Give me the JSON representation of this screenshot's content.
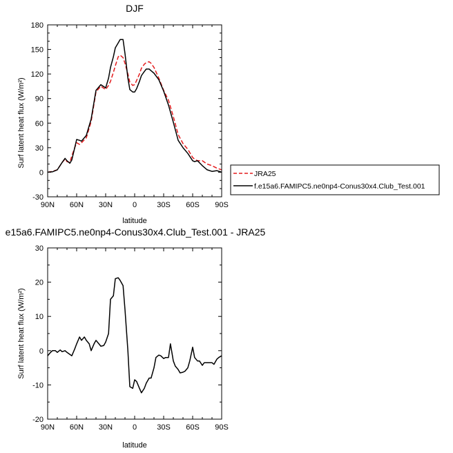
{
  "colors": {
    "jra": "#e41a1c",
    "model": "#000000",
    "frame": "#000000"
  },
  "chart_data": [
    {
      "type": "line",
      "title": "DJF",
      "xlabel": "latitude",
      "ylabel": "Surf latent heat flux (W/m²)",
      "xlim": [
        90,
        -90
      ],
      "ylim": [
        -30,
        180
      ],
      "xtick_values": [
        90,
        60,
        30,
        0,
        -30,
        -60,
        -90
      ],
      "xtick_labels": [
        "90N",
        "60N",
        "30N",
        "0",
        "30S",
        "60S",
        "90S"
      ],
      "ytick_values": [
        -30,
        0,
        30,
        60,
        90,
        120,
        150,
        180
      ],
      "ytick_labels": [
        "-30",
        "0",
        "30",
        "60",
        "90",
        "120",
        "150",
        "180"
      ],
      "legend_position": "right",
      "series": [
        {
          "name": "JRA25",
          "style": "dashed",
          "color": "#e41a1c",
          "x": [
            90,
            85,
            80,
            75,
            72,
            70,
            67,
            65,
            62,
            60,
            57,
            55,
            50,
            45,
            40,
            35,
            30,
            27,
            25,
            22,
            20,
            17,
            15,
            12,
            10,
            7,
            5,
            2,
            0,
            -2,
            -5,
            -7,
            -10,
            -12,
            -15,
            -17,
            -20,
            -25,
            -30,
            -35,
            -40,
            -45,
            -50,
            -55,
            -60,
            -62,
            -65,
            -70,
            -75,
            -80,
            -85,
            -90
          ],
          "y": [
            0,
            1,
            3,
            12,
            16,
            13,
            12,
            20,
            30,
            36,
            34,
            36,
            42,
            62,
            98,
            105,
            101,
            106,
            111,
            122,
            130,
            141,
            143,
            140,
            133,
            120,
            110,
            106,
            107,
            112,
            120,
            127,
            132,
            134,
            135,
            133,
            128,
            115,
            100,
            88,
            68,
            46,
            35,
            28,
            18,
            16,
            14,
            14,
            10,
            8,
            5,
            3
          ]
        },
        {
          "name": "f.e15a6.FAMIPC5.ne0np4-Conus30x4.Club_Test.001",
          "style": "solid",
          "color": "#000000",
          "x": [
            90,
            85,
            80,
            75,
            72,
            70,
            67,
            65,
            62,
            60,
            57,
            55,
            50,
            45,
            40,
            35,
            30,
            27,
            25,
            22,
            20,
            17,
            15,
            12,
            10,
            7,
            5,
            2,
            0,
            -2,
            -5,
            -7,
            -10,
            -12,
            -15,
            -17,
            -20,
            -25,
            -30,
            -35,
            -40,
            -45,
            -50,
            -55,
            -60,
            -62,
            -65,
            -70,
            -75,
            -80,
            -85,
            -90
          ],
          "y": [
            0,
            0.5,
            3,
            12,
            17,
            14,
            11,
            15,
            30,
            40,
            39,
            38,
            45,
            65,
            100,
            107,
            103,
            115,
            128,
            141,
            152,
            158,
            162,
            162,
            145,
            115,
            101,
            98,
            98,
            102,
            111,
            118,
            123,
            126,
            126,
            124,
            121,
            113,
            99,
            82,
            61,
            39,
            30,
            23,
            14,
            13,
            14,
            8,
            3,
            1,
            2,
            0
          ]
        }
      ]
    },
    {
      "type": "line",
      "title": "e15a6.FAMIPC5.ne0np4-Conus30x4.Club_Test.001 - JRA25",
      "xlabel": "latitude",
      "ylabel": "Surf latent heat flux (W/m²)",
      "xlim": [
        90,
        -90
      ],
      "ylim": [
        -20,
        30
      ],
      "xtick_values": [
        90,
        60,
        30,
        0,
        -30,
        -60,
        -90
      ],
      "xtick_labels": [
        "90N",
        "60N",
        "30N",
        "0",
        "30S",
        "60S",
        "90S"
      ],
      "ytick_values": [
        -20,
        -10,
        0,
        10,
        20,
        30
      ],
      "ytick_labels": [
        "-20",
        "-10",
        "0",
        "10",
        "20",
        "30"
      ],
      "series": [
        {
          "style": "solid",
          "color": "#000000",
          "x": [
            90,
            87,
            85,
            82,
            80,
            77,
            75,
            72,
            70,
            65,
            62,
            60,
            57,
            55,
            52,
            50,
            47,
            45,
            42,
            40,
            37,
            35,
            32,
            30,
            27,
            25,
            22,
            20,
            17,
            15,
            12,
            10,
            7,
            5,
            2,
            0,
            -2,
            -5,
            -7,
            -10,
            -12,
            -15,
            -17,
            -20,
            -22,
            -25,
            -27,
            -30,
            -32,
            -35,
            -37,
            -40,
            -42,
            -45,
            -47,
            -50,
            -52,
            -55,
            -57,
            -60,
            -62,
            -65,
            -67,
            -70,
            -72,
            -75,
            -77,
            -80,
            -82,
            -85,
            -87,
            -90
          ],
          "y": [
            -1.5,
            -0.5,
            0,
            0,
            -0.5,
            0.2,
            -0.3,
            0,
            -0.5,
            -1.5,
            0.5,
            2,
            4,
            3,
            4,
            3,
            2,
            0,
            2,
            3,
            2,
            1.3,
            1.5,
            2.5,
            5,
            15,
            16,
            21,
            21.3,
            20.5,
            19,
            12,
            0,
            -10.5,
            -11,
            -8.5,
            -9,
            -11,
            -12.3,
            -11,
            -9.5,
            -8,
            -8,
            -5,
            -2,
            -1.3,
            -1.5,
            -2.3,
            -2,
            -2,
            2,
            -3,
            -4.5,
            -5.5,
            -6.5,
            -6.3,
            -6,
            -5,
            -3,
            1,
            -2,
            -3,
            -3,
            -4.3,
            -3.5,
            -3.5,
            -3.5,
            -3.5,
            -4,
            -2.5,
            -2,
            -1.5
          ]
        }
      ]
    }
  ]
}
